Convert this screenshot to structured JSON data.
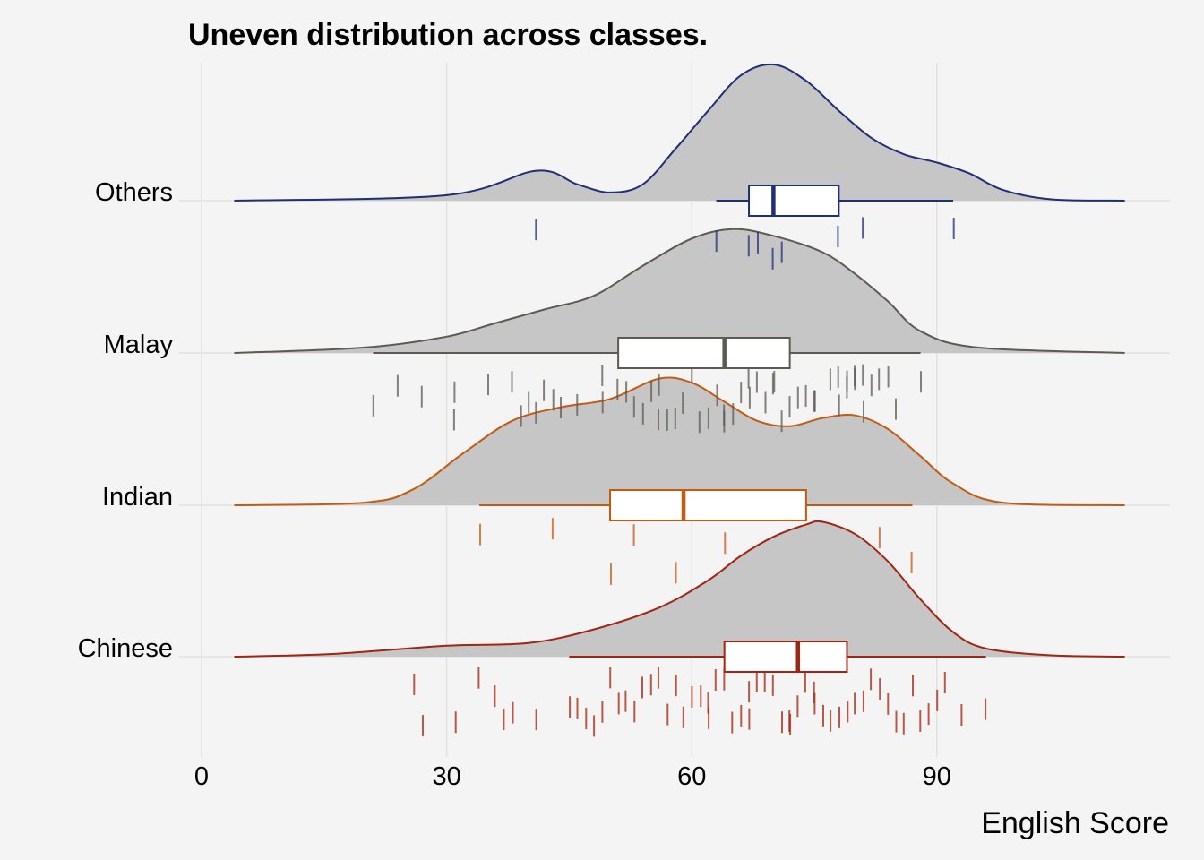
{
  "chart_data": {
    "type": "raincloud",
    "title": "Uneven distribution across classes.",
    "xlabel": "English Score",
    "xlim": [
      0,
      118
    ],
    "xticks": [
      0,
      30,
      60,
      90
    ],
    "grid": true,
    "categories": [
      "Others",
      "Malay",
      "Indian",
      "Chinese"
    ],
    "series": [
      {
        "name": "Others",
        "color": "#1f2e78",
        "box": {
          "min": 63,
          "q1": 67,
          "median": 70,
          "q3": 78,
          "max": 92
        },
        "density_curve": [
          [
            4,
            0.0
          ],
          [
            30,
            0.04
          ],
          [
            41,
            0.22
          ],
          [
            46,
            0.12
          ],
          [
            50,
            0.06
          ],
          [
            54,
            0.12
          ],
          [
            58,
            0.38
          ],
          [
            62,
            0.66
          ],
          [
            66,
            0.92
          ],
          [
            70,
            1.0
          ],
          [
            74,
            0.88
          ],
          [
            78,
            0.66
          ],
          [
            82,
            0.46
          ],
          [
            86,
            0.34
          ],
          [
            90,
            0.28
          ],
          [
            94,
            0.2
          ],
          [
            98,
            0.08
          ],
          [
            104,
            0.01
          ],
          [
            113,
            0.0
          ]
        ],
        "points": [
          41,
          63,
          67,
          68,
          70,
          71,
          78,
          81,
          92
        ]
      },
      {
        "name": "Malay",
        "color": "#5e5a51",
        "box": {
          "min": 21,
          "q1": 51,
          "median": 64,
          "q3": 72,
          "max": 88
        },
        "density_curve": [
          [
            4,
            0.0
          ],
          [
            20,
            0.04
          ],
          [
            30,
            0.12
          ],
          [
            36,
            0.22
          ],
          [
            42,
            0.32
          ],
          [
            48,
            0.42
          ],
          [
            54,
            0.64
          ],
          [
            60,
            0.84
          ],
          [
            65,
            0.91
          ],
          [
            70,
            0.86
          ],
          [
            76,
            0.74
          ],
          [
            80,
            0.58
          ],
          [
            84,
            0.38
          ],
          [
            88,
            0.16
          ],
          [
            95,
            0.04
          ],
          [
            113,
            0.0
          ]
        ],
        "points": [
          21,
          24,
          27,
          31,
          31,
          35,
          38,
          39,
          40,
          41,
          42,
          43,
          44,
          46,
          49,
          49,
          51,
          52,
          53,
          54,
          55,
          56,
          56,
          57,
          58,
          59,
          60,
          61,
          62,
          63,
          64,
          64,
          65,
          66,
          67,
          67,
          68,
          69,
          70,
          70,
          71,
          72,
          73,
          74,
          75,
          75,
          77,
          78,
          78,
          79,
          79,
          80,
          80,
          81,
          81,
          82,
          83,
          84,
          85,
          88
        ]
      },
      {
        "name": "Indian",
        "color": "#c55a11",
        "box": {
          "min": 34,
          "q1": 50,
          "median": 59,
          "q3": 74,
          "max": 87
        },
        "density_curve": [
          [
            4,
            0.0
          ],
          [
            20,
            0.02
          ],
          [
            26,
            0.12
          ],
          [
            32,
            0.38
          ],
          [
            38,
            0.62
          ],
          [
            44,
            0.72
          ],
          [
            50,
            0.78
          ],
          [
            56,
            0.93
          ],
          [
            60,
            0.9
          ],
          [
            64,
            0.76
          ],
          [
            68,
            0.62
          ],
          [
            72,
            0.58
          ],
          [
            76,
            0.64
          ],
          [
            80,
            0.66
          ],
          [
            84,
            0.56
          ],
          [
            88,
            0.36
          ],
          [
            92,
            0.16
          ],
          [
            98,
            0.02
          ],
          [
            113,
            0.0
          ]
        ],
        "points": [
          34,
          43,
          50,
          53,
          58,
          64,
          83,
          87
        ]
      },
      {
        "name": "Chinese",
        "color": "#a32412",
        "box": {
          "min": 45,
          "q1": 64,
          "median": 73,
          "q3": 79,
          "max": 96
        },
        "density_curve": [
          [
            4,
            0.0
          ],
          [
            16,
            0.02
          ],
          [
            30,
            0.08
          ],
          [
            40,
            0.1
          ],
          [
            48,
            0.2
          ],
          [
            56,
            0.36
          ],
          [
            62,
            0.56
          ],
          [
            66,
            0.74
          ],
          [
            70,
            0.88
          ],
          [
            74,
            0.97
          ],
          [
            76,
            0.99
          ],
          [
            80,
            0.9
          ],
          [
            84,
            0.7
          ],
          [
            88,
            0.42
          ],
          [
            92,
            0.18
          ],
          [
            96,
            0.06
          ],
          [
            104,
            0.01
          ],
          [
            113,
            0.0
          ]
        ],
        "points": [
          26,
          27,
          31,
          34,
          36,
          37,
          38,
          41,
          45,
          46,
          47,
          48,
          49,
          50,
          51,
          52,
          53,
          54,
          55,
          56,
          57,
          58,
          59,
          60,
          61,
          62,
          62,
          63,
          64,
          65,
          66,
          67,
          67,
          68,
          69,
          70,
          71,
          72,
          72,
          73,
          74,
          75,
          75,
          76,
          77,
          78,
          79,
          80,
          81,
          82,
          83,
          84,
          85,
          86,
          87,
          88,
          89,
          90,
          91,
          93,
          96
        ]
      }
    ]
  }
}
